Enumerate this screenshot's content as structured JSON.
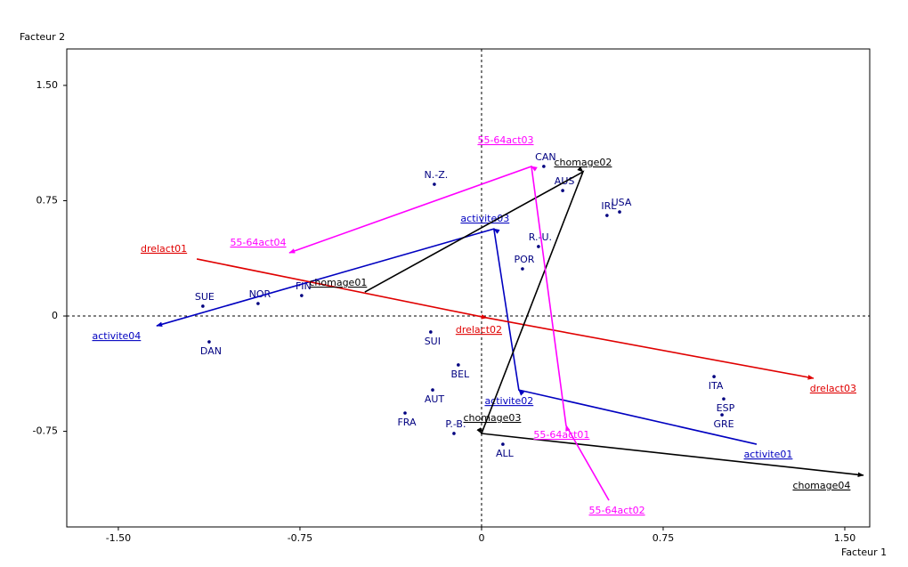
{
  "chart_data": {
    "type": "scatter",
    "x_label": "Facteur 1",
    "y_label": "Facteur 2",
    "xlim": [
      -1.713,
      1.603
    ],
    "ylim": [
      -1.372,
      1.737
    ],
    "xticks": [
      {
        "value": -1.5,
        "label": "-1.50"
      },
      {
        "value": -0.75,
        "label": "-0.75"
      },
      0,
      {
        "value": 0.75,
        "label": "0.75"
      },
      {
        "value": 1.5,
        "label": "1.50"
      }
    ],
    "yticks": [
      {
        "value": -0.75,
        "label": "-0.75"
      },
      0,
      {
        "value": 0.75,
        "label": "0.75"
      },
      {
        "value": 1.5,
        "label": "1.50"
      }
    ],
    "points": {
      "color": "#000080",
      "labels": [
        "CAN",
        "AUS",
        "N.-Z.",
        "IRL",
        "USA",
        "R.-U.",
        "POR",
        "FIN",
        "NOR",
        "SUE",
        "DAN",
        "SUI",
        "BEL",
        "AUT",
        "FRA",
        "P.-B.",
        "ALL",
        "ITA",
        "ESP",
        "GRE"
      ],
      "x": [
        0.257,
        0.335,
        -0.195,
        0.518,
        0.57,
        0.235,
        0.169,
        -0.743,
        -0.923,
        -1.151,
        -1.125,
        -0.21,
        -0.096,
        -0.202,
        -0.316,
        -0.114,
        0.088,
        0.96,
        1.0,
        0.993
      ],
      "y": [
        0.973,
        0.816,
        0.857,
        0.654,
        0.677,
        0.452,
        0.307,
        0.133,
        0.081,
        0.064,
        -0.168,
        -0.104,
        -0.318,
        -0.481,
        -0.631,
        -0.764,
        -0.834,
        -0.394,
        -0.539,
        -0.643
      ]
    },
    "series": [
      {
        "color": "#0000c0",
        "labels": [
          "activite01",
          "activite02",
          "activite03",
          "activite04"
        ],
        "x": [
          1.136,
          0.154,
          0.051,
          -1.342
        ],
        "y": [
          -0.834,
          -0.481,
          0.567,
          -0.064
        ]
      },
      {
        "color": "#e00000",
        "labels": [
          "drelact01",
          "drelact02",
          "drelact03"
        ],
        "x": [
          -1.176,
          0.022,
          1.371
        ],
        "y": [
          0.371,
          -0.012,
          -0.405
        ]
      },
      {
        "color": "#000000",
        "labels": [
          "chomage01",
          "chomage02",
          "chomage03",
          "chomage04"
        ],
        "x": [
          -0.482,
          0.419,
          0.0,
          1.577
        ],
        "y": [
          0.156,
          0.938,
          -0.764,
          -1.036
        ]
      },
      {
        "color": "#ff00ff",
        "labels": [
          "55-64act02",
          "55-64act01",
          "55-64act03",
          "55-64act04"
        ],
        "x": [
          0.526,
          0.349,
          0.206,
          -0.794
        ],
        "y": [
          -1.199,
          -0.712,
          0.973,
          0.411
        ]
      }
    ]
  }
}
